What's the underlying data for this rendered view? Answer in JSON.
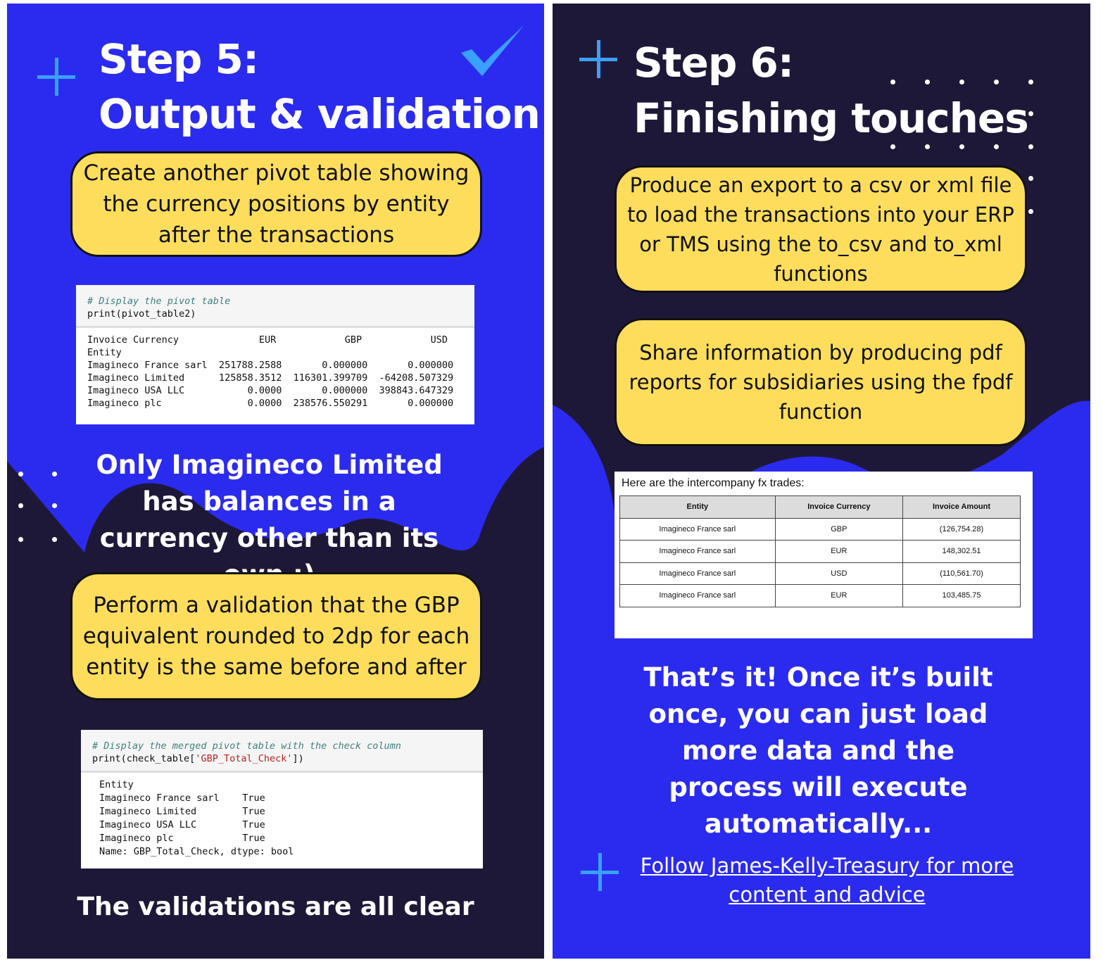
{
  "left": {
    "title_line1": "Step 5:",
    "title_line2": "Output & validation",
    "icons": [
      "plus-icon",
      "checkmark-icon"
    ],
    "bubble1": "Create another pivot table showing the currency positions by entity after the transactions",
    "code1": {
      "comment": "# Display the pivot table",
      "code": "print(pivot_table2)",
      "output": "Invoice Currency              EUR            GBP            USD\nEntity\nImagineco France sarl  251788.2588       0.000000       0.000000\nImagineco Limited      125858.3512  116301.399709  -64208.507329\nImagineco USA LLC           0.0000       0.000000  398843.647329\nImagineco plc               0.0000  238576.550291       0.000000"
    },
    "statement": "Only Imagineco Limited has balances in a currency other than its own :)",
    "bubble2": "Perform a validation that the GBP equivalent rounded to 2dp for each entity is the same before and after",
    "code2": {
      "comment": "# Display the merged pivot table with the check column",
      "code_prefix": "print(check_table[",
      "code_string": "'GBP_Total_Check'",
      "code_suffix": "])",
      "output": "Entity\nImagineco France sarl    True\nImagineco Limited        True\nImagineco USA LLC        True\nImagineco plc            True\nName: GBP_Total_Check, dtype: bool"
    },
    "footer": "The validations are all clear"
  },
  "right": {
    "title_line1": "Step 6:",
    "title_line2": "Finishing touches",
    "bubble1": "Produce an export to a csv or xml file to load the transactions into your ERP or TMS using the to_csv and to_xml functions",
    "bubble2": "Share information by producing pdf reports for subsidiaries using the fpdf function",
    "trades": {
      "caption": "Here are the intercompany fx trades:",
      "headers": [
        "Entity",
        "Invoice Currency",
        "Invoice Amount"
      ],
      "rows": [
        [
          "Imagineco France sarl",
          "GBP",
          "(126,754.28)"
        ],
        [
          "Imagineco France sarl",
          "EUR",
          "148,302.51"
        ],
        [
          "Imagineco France sarl",
          "USD",
          "(110,561.70)"
        ],
        [
          "Imagineco France sarl",
          "EUR",
          "103,485.75"
        ]
      ]
    },
    "statement": "That’s it! Once it’s built once, you can just load more data and the process will execute automatically...",
    "link": "Follow James-Kelly-Treasury for more content and advice"
  },
  "colors": {
    "blue": "#2b2bf0",
    "navy": "#1e1838",
    "yellow": "#fedd5c",
    "accent": "#3aa0ff"
  }
}
